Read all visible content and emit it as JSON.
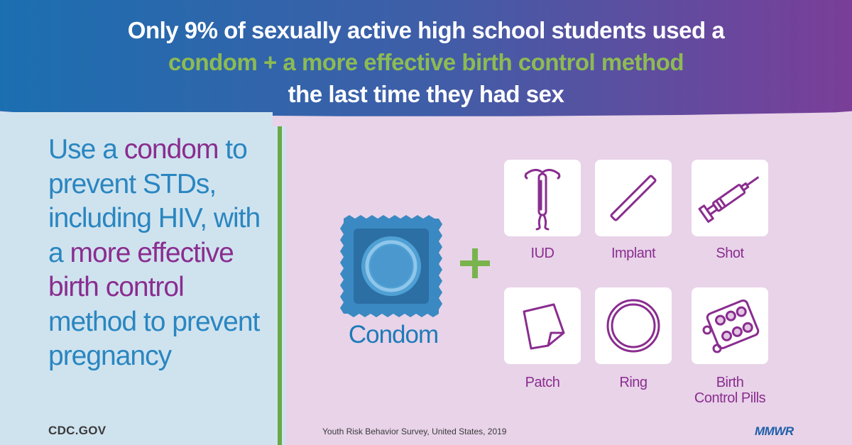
{
  "header": {
    "line1": "Only 9% of sexually active high school students used a",
    "line2": "condom + a more effective birth control method",
    "line3": "the last time they had sex"
  },
  "message": {
    "p1": "Use a ",
    "h1": "condom",
    "p2": " to prevent STDs, including HIV, with a ",
    "h2": "more effective birth control",
    "p3": " method to prevent pregnancy"
  },
  "condom": {
    "label": "Condom"
  },
  "methods": [
    {
      "label": "IUD",
      "icon": "iud-icon"
    },
    {
      "label": "Implant",
      "icon": "implant-icon"
    },
    {
      "label": "Shot",
      "icon": "syringe-icon"
    },
    {
      "label": "Patch",
      "icon": "patch-icon"
    },
    {
      "label": "Ring",
      "icon": "ring-icon"
    },
    {
      "label": "Birth\nControl Pills",
      "icon": "pill-pack-icon"
    }
  ],
  "footer": {
    "site": "CDC.GOV",
    "source": "Youth Risk Behavior Survey, United States, 2019",
    "logo": "MMWR"
  },
  "colors": {
    "header_gradient_start": "#1b6fb0",
    "header_gradient_end": "#7a3e98",
    "green_accent": "#8dbb52",
    "blue_text": "#2a86c0",
    "purple_text": "#8a2d8f",
    "left_panel_bg": "#cfe3ef",
    "right_panel_bg": "#e8d3e8"
  }
}
